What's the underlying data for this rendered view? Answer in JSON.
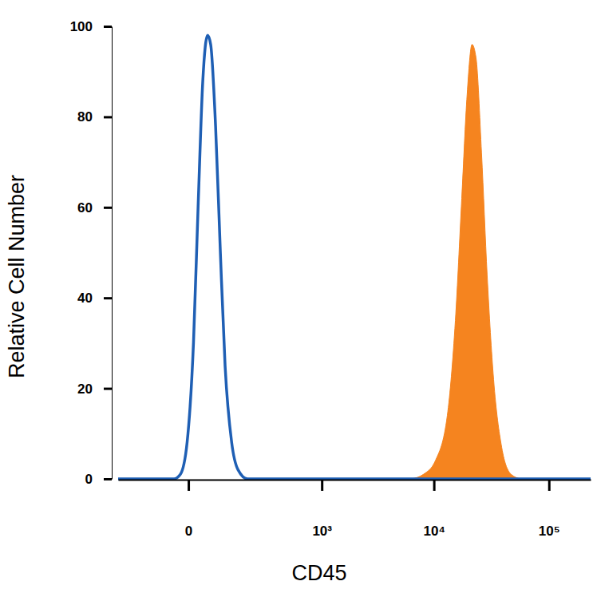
{
  "chart_data": {
    "type": "area",
    "x_label": "CD45",
    "y_label": "Relative Cell Number",
    "log": "x",
    "xlim": [
      -230,
      230000
    ],
    "xticks": [
      0,
      {
        "value": 1000,
        "label": "10³"
      },
      {
        "value": 10000,
        "label": "10⁴"
      },
      {
        "value": 100000,
        "label": "10⁵"
      }
    ],
    "ylim": [
      0,
      100
    ],
    "yticks": [
      0,
      20,
      40,
      60,
      80,
      100
    ],
    "series": [
      {
        "type": "area",
        "color": "#f5841f",
        "x": [
          6300,
          8100,
          10300,
          13100,
          15400,
          17500,
          19500,
          21500,
          23300,
          26000,
          29100,
          33100,
          38900,
          47000,
          57000
        ],
        "values": [
          0,
          1,
          4,
          14,
          35,
          62,
          85,
          96,
          93,
          72,
          45,
          22,
          7,
          1,
          0
        ]
      },
      {
        "type": "line",
        "color": "#1f5fb4",
        "x": [
          -230,
          -25,
          -13,
          -2,
          8,
          16,
          25,
          35,
          42,
          54,
          67,
          81,
          103,
          127,
          169,
          230000
        ],
        "values": [
          0,
          0,
          1,
          8,
          30,
          60,
          88,
          98,
          96,
          78,
          50,
          25,
          8,
          2,
          0,
          0
        ]
      }
    ]
  }
}
